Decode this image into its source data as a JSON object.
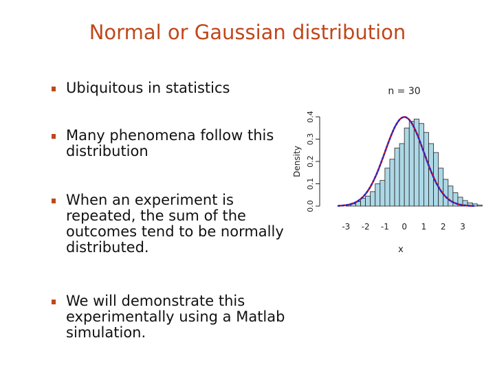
{
  "slide": {
    "title": "Normal or Gaussian distribution",
    "bullets": [
      "Ubiquitous in statistics",
      "Many phenomena follow this distribution",
      "When an experiment is repeated, the sum of the outcomes tend to be normally distributed.",
      "We will demonstrate this experimentally using a Matlab simulation."
    ]
  },
  "colors": {
    "title": "#c0471b",
    "bullet": "#c0471b",
    "bar_fill": "#add8e6",
    "curve_red": "#e01010",
    "curve_blue": "#1c2bd0"
  },
  "chart_data": {
    "type": "bar",
    "title": "n = 30",
    "xlabel": "x",
    "ylabel": "Density",
    "xlim": [
      -3.4,
      3.6
    ],
    "ylim": [
      0,
      0.4
    ],
    "xticks": [
      "-3",
      "-2",
      "-1",
      "0",
      "1",
      "2",
      "3"
    ],
    "yticks": [
      "0.0",
      "0.1",
      "0.2",
      "0.3",
      "0.4"
    ],
    "bin_width": 0.25,
    "bins_start": -3.0,
    "values": [
      0.005,
      0.01,
      0.02,
      0.035,
      0.045,
      0.065,
      0.1,
      0.115,
      0.17,
      0.21,
      0.26,
      0.28,
      0.35,
      0.38,
      0.39,
      0.37,
      0.33,
      0.28,
      0.24,
      0.17,
      0.12,
      0.09,
      0.06,
      0.04,
      0.025,
      0.015,
      0.01,
      0.005
    ],
    "series": [
      {
        "type": "line",
        "description": "normal density curve"
      },
      {
        "type": "line",
        "description": "empirical density curve"
      }
    ],
    "grid": false
  }
}
